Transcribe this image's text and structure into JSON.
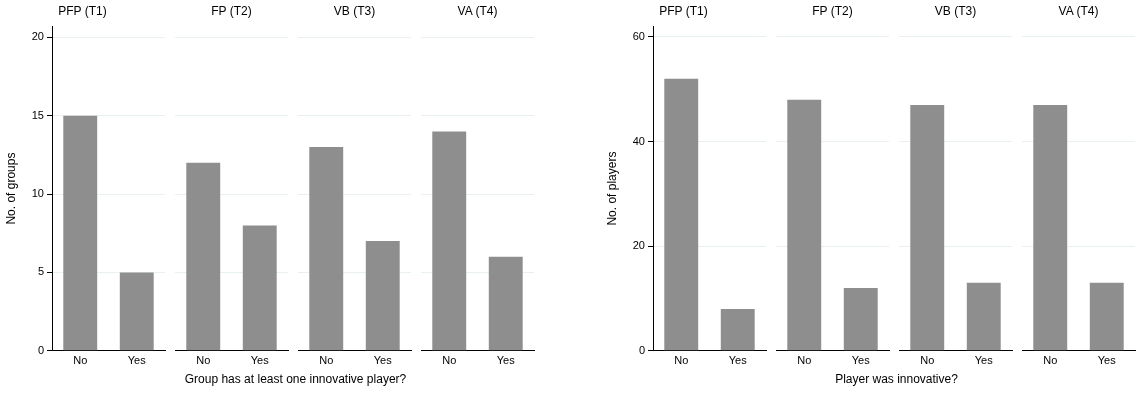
{
  "chart_data": [
    {
      "type": "bar",
      "title": "PFP (T1)",
      "ylabel": "No. of groups",
      "xlabel": "Group has at least one innovative player?",
      "categories": [
        "No",
        "Yes"
      ],
      "values": [
        15,
        5
      ],
      "color": "#8e8e8e",
      "ylim": [
        0,
        20.7
      ],
      "yticks": [
        0,
        5,
        10,
        15,
        20
      ],
      "grid": "y"
    },
    {
      "type": "bar",
      "title": "FP (T2)",
      "categories": [
        "No",
        "Yes"
      ],
      "values": [
        12,
        8
      ],
      "color": "#8e8e8e",
      "yticks": [
        0,
        5,
        10,
        15,
        20
      ],
      "grid": "y",
      "tick_labels": "x"
    },
    {
      "type": "bar",
      "title": "VB (T3)",
      "categories": [
        "No",
        "Yes"
      ],
      "values": [
        13,
        7
      ],
      "color": "#8e8e8e",
      "yticks": [
        0,
        5,
        10,
        15,
        20
      ],
      "grid": "y",
      "tick_labels": "x"
    },
    {
      "type": "bar",
      "title": "VA (T4)",
      "categories": [
        "No",
        "Yes"
      ],
      "values": [
        14,
        6
      ],
      "color": "#8e8e8e",
      "yticks": [
        0,
        5,
        10,
        15,
        20
      ],
      "grid": "y",
      "tick_labels": "x"
    },
    {
      "type": "bar",
      "title": "PFP (T1)",
      "ylabel": "No. of players",
      "xlabel": "Player was innovative?",
      "categories": [
        "No",
        "Yes"
      ],
      "values": [
        52,
        8
      ],
      "color": "#8e8e8e",
      "ylim": [
        0,
        62
      ],
      "yticks": [
        0,
        20,
        40,
        60
      ],
      "grid": "y"
    },
    {
      "type": "bar",
      "title": "FP (T2)",
      "categories": [
        "No",
        "Yes"
      ],
      "values": [
        48,
        12
      ],
      "color": "#8e8e8e",
      "yticks": [
        0,
        20,
        40,
        60
      ],
      "grid": "y",
      "tick_labels": "x"
    },
    {
      "type": "bar",
      "title": "VB (T3)",
      "categories": [
        "No",
        "Yes"
      ],
      "values": [
        47,
        13
      ],
      "color": "#8e8e8e",
      "yticks": [
        0,
        20,
        40,
        60
      ],
      "grid": "y",
      "tick_labels": "x"
    },
    {
      "type": "bar",
      "title": "VA (T4)",
      "categories": [
        "No",
        "Yes"
      ],
      "values": [
        47,
        13
      ],
      "color": "#8e8e8e",
      "yticks": [
        0,
        20,
        40,
        60
      ],
      "grid": "y",
      "tick_labels": "x"
    }
  ]
}
